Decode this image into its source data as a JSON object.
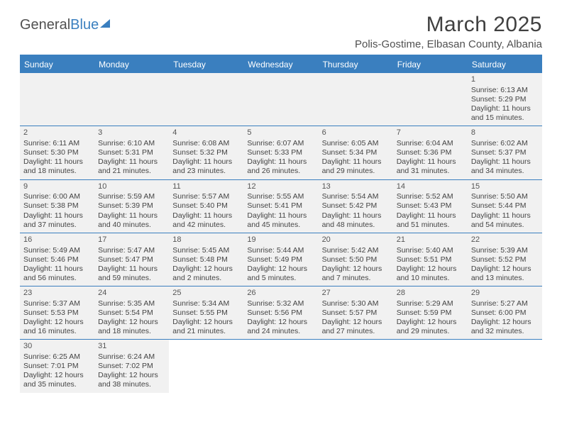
{
  "logo": {
    "text1": "General",
    "text2": "Blue"
  },
  "title": "March 2025",
  "location": "Polis-Gostime, Elbasan County, Albania",
  "dayHeaders": [
    "Sunday",
    "Monday",
    "Tuesday",
    "Wednesday",
    "Thursday",
    "Friday",
    "Saturday"
  ],
  "colors": {
    "headerBg": "#3a7fbf",
    "cellBg": "#f1f1f1",
    "border": "#3a7fbf",
    "text": "#404040"
  },
  "days": {
    "1": {
      "sunrise": "6:13 AM",
      "sunset": "5:29 PM",
      "daylight": "11 hours and 15 minutes."
    },
    "2": {
      "sunrise": "6:11 AM",
      "sunset": "5:30 PM",
      "daylight": "11 hours and 18 minutes."
    },
    "3": {
      "sunrise": "6:10 AM",
      "sunset": "5:31 PM",
      "daylight": "11 hours and 21 minutes."
    },
    "4": {
      "sunrise": "6:08 AM",
      "sunset": "5:32 PM",
      "daylight": "11 hours and 23 minutes."
    },
    "5": {
      "sunrise": "6:07 AM",
      "sunset": "5:33 PM",
      "daylight": "11 hours and 26 minutes."
    },
    "6": {
      "sunrise": "6:05 AM",
      "sunset": "5:34 PM",
      "daylight": "11 hours and 29 minutes."
    },
    "7": {
      "sunrise": "6:04 AM",
      "sunset": "5:36 PM",
      "daylight": "11 hours and 31 minutes."
    },
    "8": {
      "sunrise": "6:02 AM",
      "sunset": "5:37 PM",
      "daylight": "11 hours and 34 minutes."
    },
    "9": {
      "sunrise": "6:00 AM",
      "sunset": "5:38 PM",
      "daylight": "11 hours and 37 minutes."
    },
    "10": {
      "sunrise": "5:59 AM",
      "sunset": "5:39 PM",
      "daylight": "11 hours and 40 minutes."
    },
    "11": {
      "sunrise": "5:57 AM",
      "sunset": "5:40 PM",
      "daylight": "11 hours and 42 minutes."
    },
    "12": {
      "sunrise": "5:55 AM",
      "sunset": "5:41 PM",
      "daylight": "11 hours and 45 minutes."
    },
    "13": {
      "sunrise": "5:54 AM",
      "sunset": "5:42 PM",
      "daylight": "11 hours and 48 minutes."
    },
    "14": {
      "sunrise": "5:52 AM",
      "sunset": "5:43 PM",
      "daylight": "11 hours and 51 minutes."
    },
    "15": {
      "sunrise": "5:50 AM",
      "sunset": "5:44 PM",
      "daylight": "11 hours and 54 minutes."
    },
    "16": {
      "sunrise": "5:49 AM",
      "sunset": "5:46 PM",
      "daylight": "11 hours and 56 minutes."
    },
    "17": {
      "sunrise": "5:47 AM",
      "sunset": "5:47 PM",
      "daylight": "11 hours and 59 minutes."
    },
    "18": {
      "sunrise": "5:45 AM",
      "sunset": "5:48 PM",
      "daylight": "12 hours and 2 minutes."
    },
    "19": {
      "sunrise": "5:44 AM",
      "sunset": "5:49 PM",
      "daylight": "12 hours and 5 minutes."
    },
    "20": {
      "sunrise": "5:42 AM",
      "sunset": "5:50 PM",
      "daylight": "12 hours and 7 minutes."
    },
    "21": {
      "sunrise": "5:40 AM",
      "sunset": "5:51 PM",
      "daylight": "12 hours and 10 minutes."
    },
    "22": {
      "sunrise": "5:39 AM",
      "sunset": "5:52 PM",
      "daylight": "12 hours and 13 minutes."
    },
    "23": {
      "sunrise": "5:37 AM",
      "sunset": "5:53 PM",
      "daylight": "12 hours and 16 minutes."
    },
    "24": {
      "sunrise": "5:35 AM",
      "sunset": "5:54 PM",
      "daylight": "12 hours and 18 minutes."
    },
    "25": {
      "sunrise": "5:34 AM",
      "sunset": "5:55 PM",
      "daylight": "12 hours and 21 minutes."
    },
    "26": {
      "sunrise": "5:32 AM",
      "sunset": "5:56 PM",
      "daylight": "12 hours and 24 minutes."
    },
    "27": {
      "sunrise": "5:30 AM",
      "sunset": "5:57 PM",
      "daylight": "12 hours and 27 minutes."
    },
    "28": {
      "sunrise": "5:29 AM",
      "sunset": "5:59 PM",
      "daylight": "12 hours and 29 minutes."
    },
    "29": {
      "sunrise": "5:27 AM",
      "sunset": "6:00 PM",
      "daylight": "12 hours and 32 minutes."
    },
    "30": {
      "sunrise": "6:25 AM",
      "sunset": "7:01 PM",
      "daylight": "12 hours and 35 minutes."
    },
    "31": {
      "sunrise": "6:24 AM",
      "sunset": "7:02 PM",
      "daylight": "12 hours and 38 minutes."
    }
  },
  "labels": {
    "sunrise": "Sunrise: ",
    "sunset": "Sunset: ",
    "daylight": "Daylight: "
  },
  "grid": [
    [
      null,
      null,
      null,
      null,
      null,
      null,
      "1"
    ],
    [
      "2",
      "3",
      "4",
      "5",
      "6",
      "7",
      "8"
    ],
    [
      "9",
      "10",
      "11",
      "12",
      "13",
      "14",
      "15"
    ],
    [
      "16",
      "17",
      "18",
      "19",
      "20",
      "21",
      "22"
    ],
    [
      "23",
      "24",
      "25",
      "26",
      "27",
      "28",
      "29"
    ],
    [
      "30",
      "31",
      null,
      null,
      null,
      null,
      null
    ]
  ]
}
